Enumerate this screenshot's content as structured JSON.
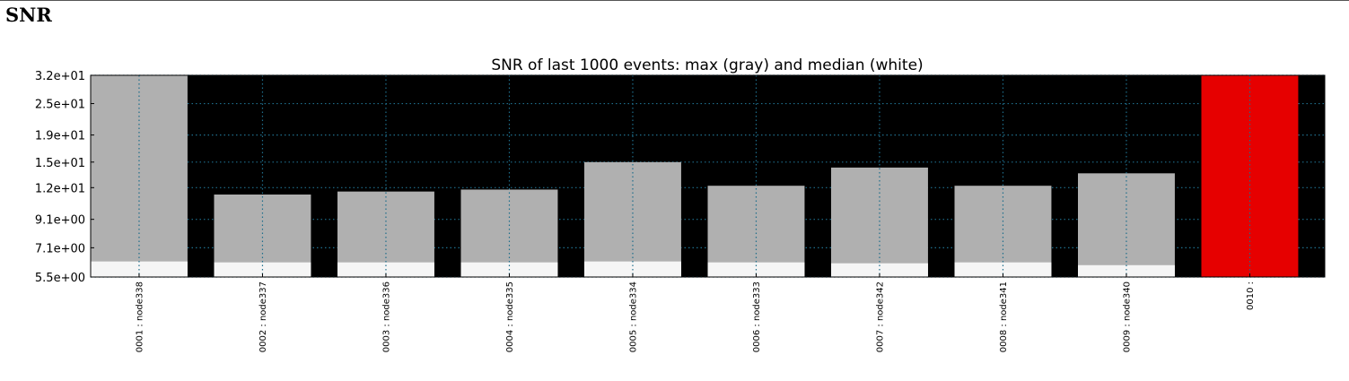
{
  "page": {
    "heading": "SNR"
  },
  "chart_data": {
    "type": "bar",
    "title": "SNR of last 1000 events: max (gray) and median (white)",
    "xlabel": "",
    "ylabel": "",
    "scale": "log",
    "ylim": [
      5.5,
      32
    ],
    "yticks": [
      5.5,
      7.1,
      9.1,
      12,
      15,
      19,
      25,
      32
    ],
    "ytick_labels": [
      "5.5e+00",
      "7.1e+00",
      "9.1e+00",
      "1.2e+01",
      "1.5e+01",
      "1.9e+01",
      "2.5e+01",
      "3.2e+01"
    ],
    "grid": true,
    "categories": [
      "0001 : node338",
      "0002 : node337",
      "0003 : node336",
      "0004 : node335",
      "0005 : node334",
      "0006 : node333",
      "0007 : node342",
      "0008 : node341",
      "0009 : node340",
      "0010 :"
    ],
    "series": [
      {
        "name": "max",
        "values": [
          32,
          11.3,
          11.6,
          11.8,
          15.0,
          12.2,
          14.3,
          12.2,
          13.6,
          32
        ]
      },
      {
        "name": "median",
        "values": [
          6.3,
          6.25,
          6.25,
          6.25,
          6.3,
          6.25,
          6.2,
          6.25,
          6.1,
          null
        ]
      }
    ],
    "colors": {
      "background": "#000000",
      "max_bar": "#b0b0b0",
      "median_bar": "#f5f5f5",
      "alert_bar": "#e60000",
      "grid": "#1e6e8c"
    },
    "alert_categories": [
      "0010 :"
    ]
  }
}
